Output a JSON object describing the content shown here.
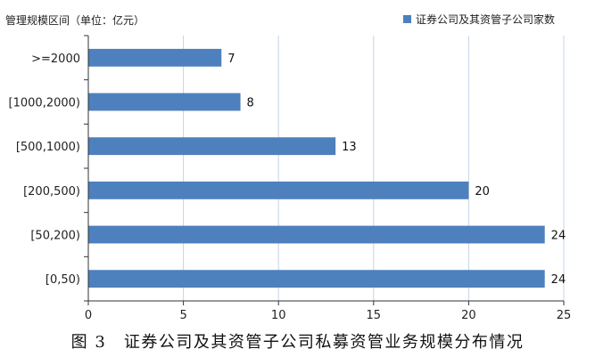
{
  "chart_data": {
    "type": "bar",
    "orientation": "horizontal",
    "ylabel": "管理规模区间（单位：亿元）",
    "categories": [
      ">=2000",
      "[1000,2000)",
      "[500,1000)",
      "[200,500)",
      "[50,200)",
      "[0,50)"
    ],
    "series": [
      {
        "name": "证券公司及其资管子公司家数",
        "values": [
          7,
          8,
          13,
          20,
          24,
          24
        ],
        "color": "#4e80bd"
      }
    ],
    "xlim": [
      0,
      25
    ],
    "xticks": [
      0,
      5,
      10,
      15,
      20,
      25
    ],
    "grid": "vertical",
    "legend": "top-right"
  },
  "caption": "图 3　证券公司及其资管子公司私募资管业务规模分布情况"
}
